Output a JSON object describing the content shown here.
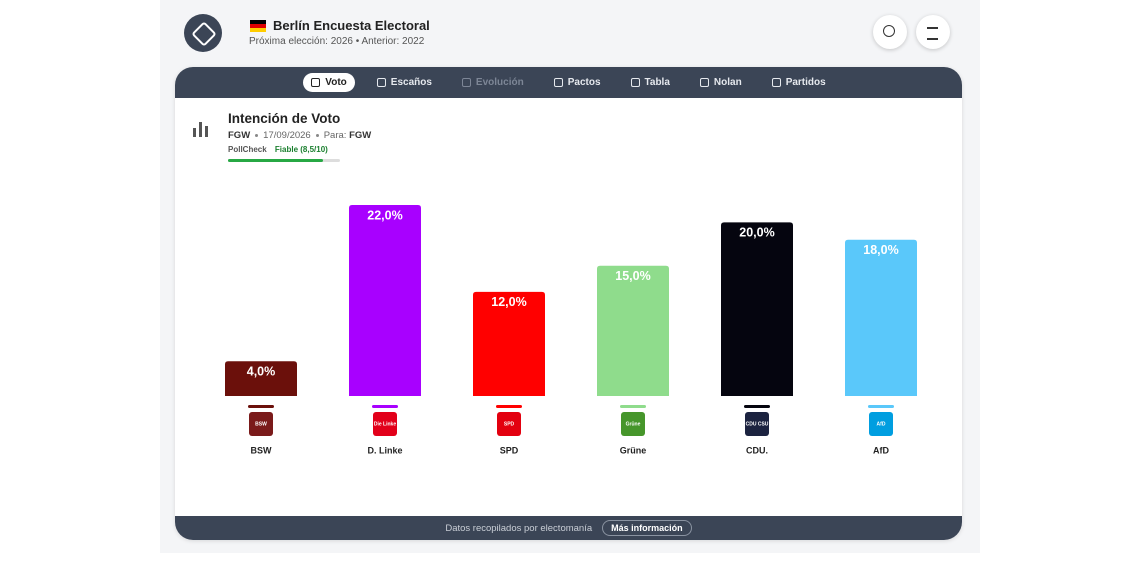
{
  "header": {
    "title": "Berlín Encuesta Electoral",
    "subtitle": "Próxima elección: 2026 • Anterior: 2022"
  },
  "nav": [
    "Voto",
    "Escaños",
    "Evolución",
    "Pactos",
    "Tabla",
    "Nolan",
    "Partidos"
  ],
  "poll": {
    "title": "Intención de Voto",
    "pollster": "FGW",
    "date": "17/09/2026",
    "for_label": "Para:",
    "for": "FGW",
    "pollcheck": "PollCheck",
    "rating": "Fiable (8,5/10)"
  },
  "footer": {
    "text": "Datos recopilados por electomanía",
    "link": "Más información"
  },
  "chart_data": {
    "type": "bar",
    "categories": [
      "BSW",
      "D. Linke",
      "SPD",
      "Grüne",
      "CDU.",
      "AfD"
    ],
    "values": [
      4,
      22,
      12,
      15,
      20,
      18
    ],
    "value_labels": [
      "4,0%",
      "22,0%",
      "12,0%",
      "15,0%",
      "20,0%",
      "18,0%"
    ],
    "colors": [
      "#6b100b",
      "#a800ff",
      "#ff0000",
      "#8fdc8c",
      "#05050f",
      "#5ac8fa"
    ],
    "logo_texts": [
      "BSW",
      "Die Linke",
      "SPD",
      "Grüne",
      "CDU CSU",
      "AfD"
    ],
    "logo_colors": [
      "#7a1a1a",
      "#e2001a",
      "#e3000f",
      "#46962b",
      "#1c2340",
      "#009ee0"
    ]
  }
}
